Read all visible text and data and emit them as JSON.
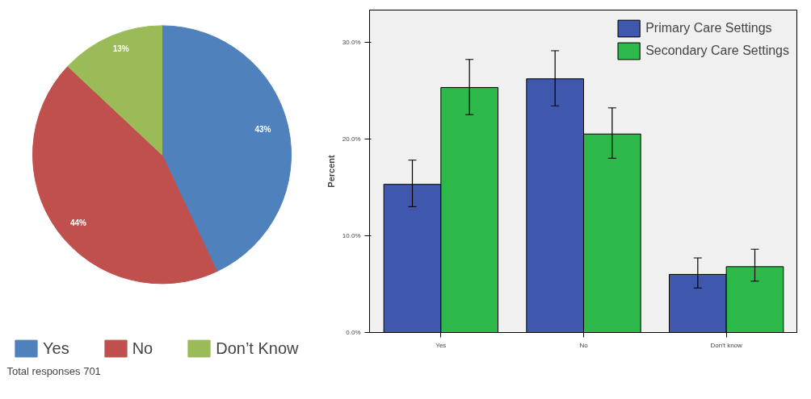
{
  "chart_data": [
    {
      "type": "pie",
      "categories": [
        "Yes",
        "No",
        "Don’t Know"
      ],
      "values": [
        43,
        44,
        13
      ],
      "colors": [
        "#4f81bd",
        "#c0504d",
        "#9bbb59"
      ],
      "value_labels": [
        "43%",
        "44%",
        "13%"
      ],
      "legend": "bottom",
      "annotations": [
        "Total responses 701"
      ]
    },
    {
      "type": "bar",
      "categories": [
        "Yes",
        "No",
        "Don't know"
      ],
      "ylabel": "Percent",
      "ylim": [
        0,
        33.3
      ],
      "yticks": [
        {
          "value": 0,
          "label": "0.0%"
        },
        {
          "value": 10,
          "label": "10.0%"
        },
        {
          "value": 20,
          "label": "20.0%"
        },
        {
          "value": 30,
          "label": "30.0%"
        }
      ],
      "grid": false,
      "legend": "top right",
      "series": [
        {
          "name": "Primary Care Settings",
          "color": "#3f58ad",
          "values": [
            15.3,
            26.2,
            6.0
          ],
          "errors": [
            [
              13.0,
              17.8
            ],
            [
              23.4,
              29.1
            ],
            [
              4.6,
              7.7
            ]
          ]
        },
        {
          "name": "Secondary Care Settings",
          "color": "#2db84a",
          "values": [
            25.3,
            20.5,
            6.8
          ],
          "errors": [
            [
              22.5,
              28.2
            ],
            [
              18.0,
              23.2
            ],
            [
              5.3,
              8.6
            ]
          ]
        }
      ]
    }
  ]
}
